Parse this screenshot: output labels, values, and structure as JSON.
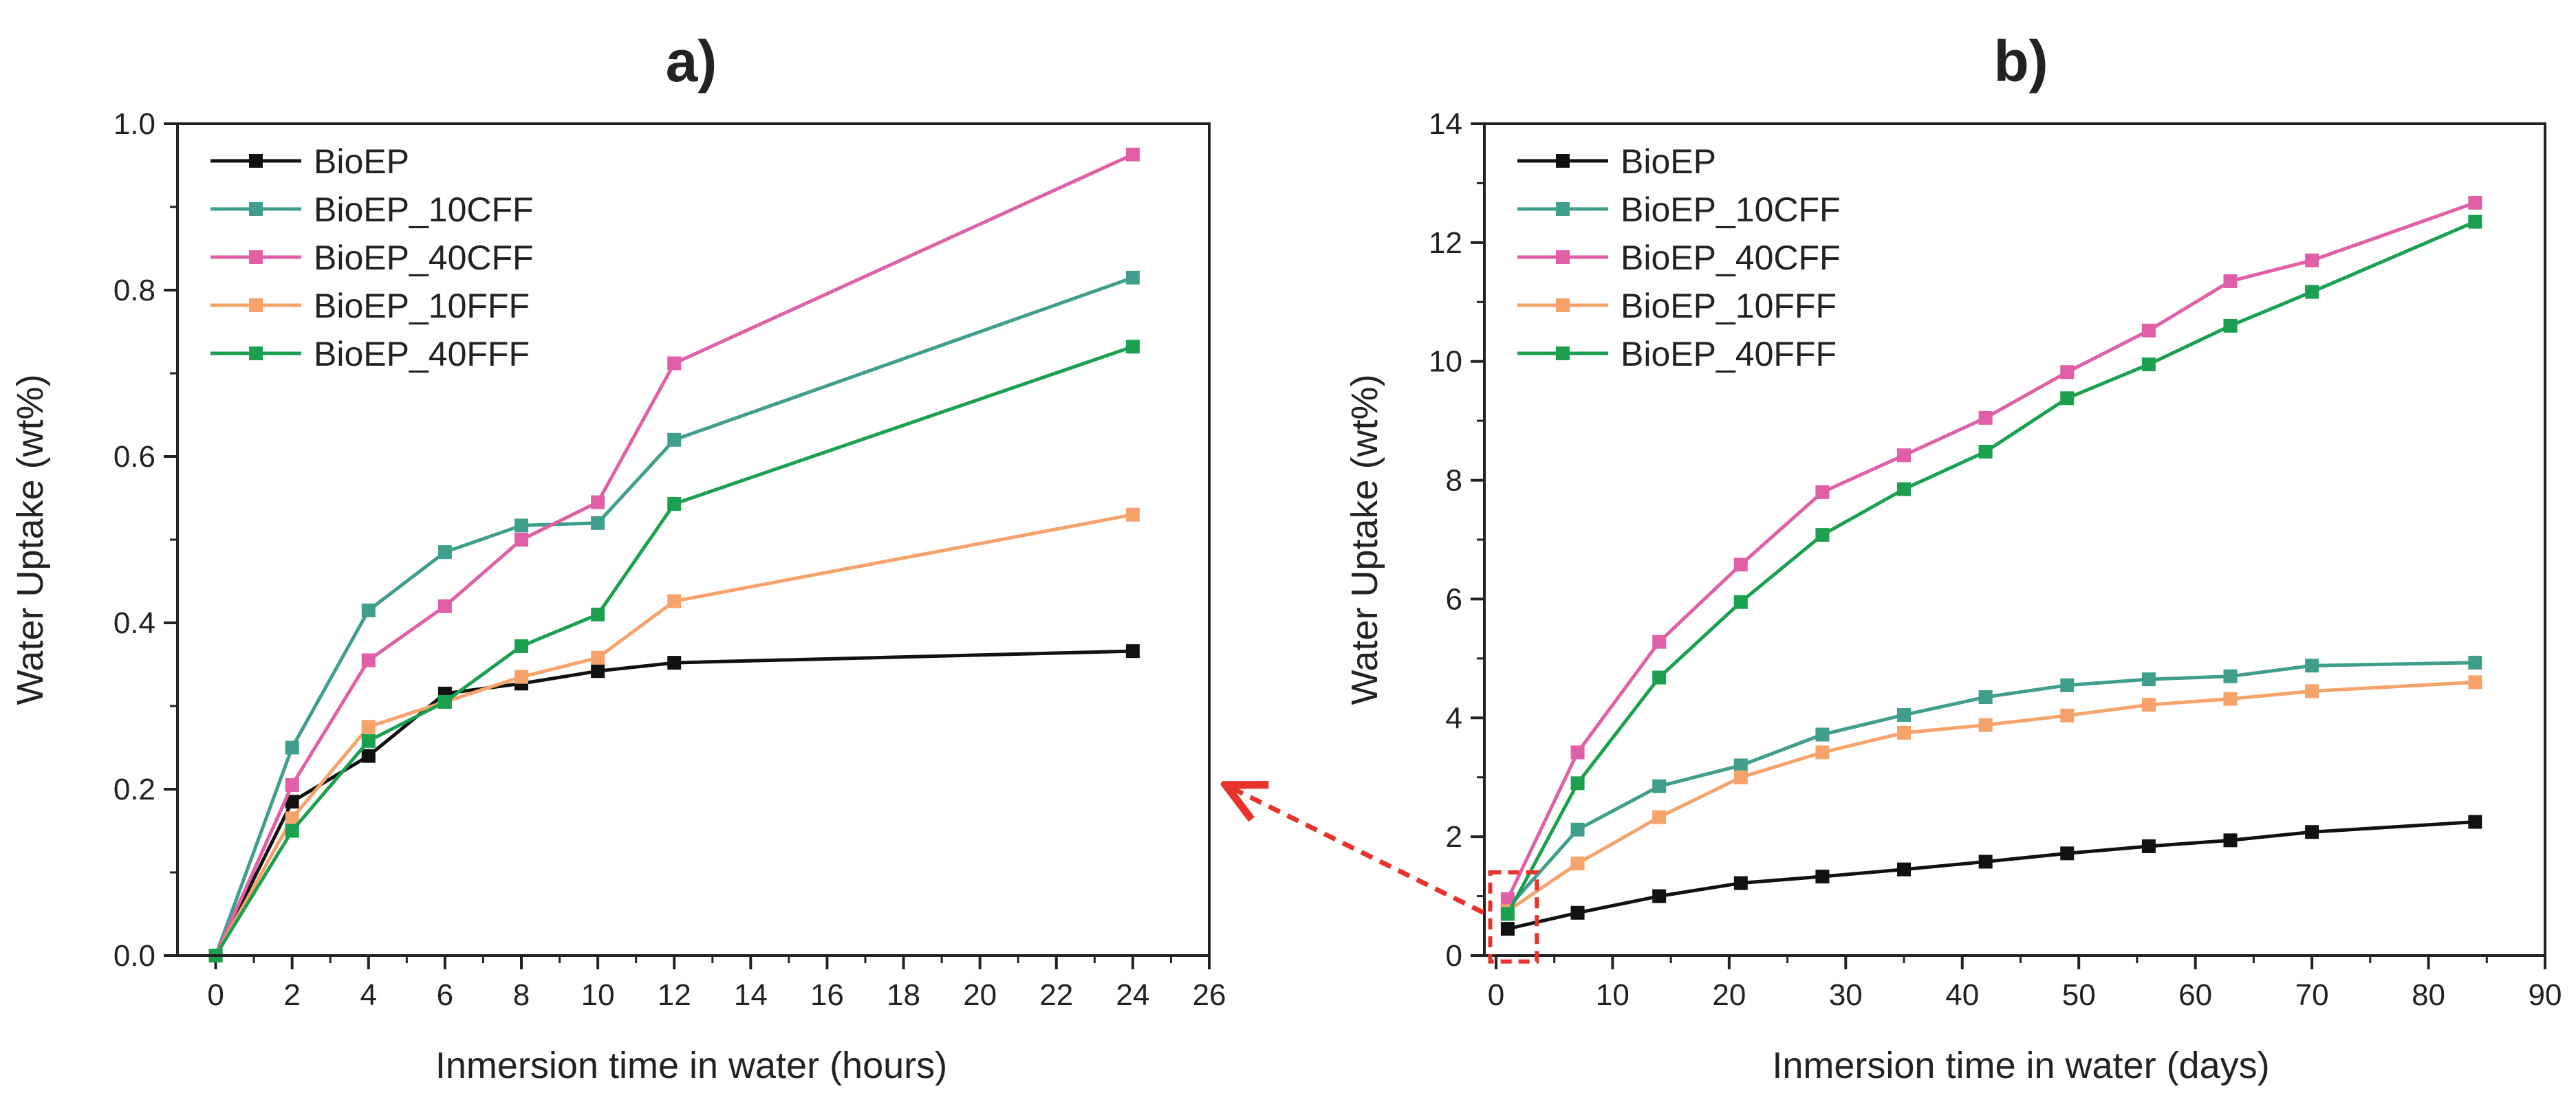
{
  "figure": {
    "arrow_color": "#e8332b"
  },
  "chart_data": [
    {
      "panel": "a)",
      "type": "line",
      "xlabel": "Inmersion time in water (hours)",
      "ylabel": "Water Uptake (wt%)",
      "xlim": [
        -1,
        26
      ],
      "ylim": [
        0,
        1.0
      ],
      "xticks": [
        0,
        2,
        4,
        6,
        8,
        10,
        12,
        14,
        16,
        18,
        20,
        22,
        24,
        26
      ],
      "yticks": [
        0.0,
        0.2,
        0.4,
        0.6,
        0.8,
        1.0
      ],
      "x": [
        0,
        2,
        4,
        6,
        8,
        10,
        12,
        24
      ],
      "legend_position": "top-left",
      "series": [
        {
          "name": "BioEP",
          "color": "#111111",
          "values": [
            0,
            0.185,
            0.24,
            0.315,
            0.327,
            0.342,
            0.352,
            0.366
          ]
        },
        {
          "name": "BioEP_10CFF",
          "color": "#3f9e8c",
          "values": [
            0,
            0.25,
            0.415,
            0.485,
            0.517,
            0.52,
            0.62,
            0.815
          ]
        },
        {
          "name": "BioEP_40CFF",
          "color": "#e05fa6",
          "values": [
            0,
            0.205,
            0.355,
            0.42,
            0.5,
            0.545,
            0.712,
            0.963
          ]
        },
        {
          "name": "BioEP_10FFF",
          "color": "#f6a26b",
          "values": [
            0,
            0.165,
            0.275,
            0.305,
            0.335,
            0.358,
            0.426,
            0.53
          ]
        },
        {
          "name": "BioEP_40FFF",
          "color": "#1aa04f",
          "values": [
            0,
            0.15,
            0.258,
            0.305,
            0.372,
            0.41,
            0.543,
            0.732
          ]
        }
      ]
    },
    {
      "panel": "b)",
      "type": "line",
      "xlabel": "Inmersion time in water (days)",
      "ylabel": "Water Uptake (wt%)",
      "xlim": [
        -1,
        90
      ],
      "ylim": [
        0,
        14
      ],
      "xticks": [
        0,
        10,
        20,
        30,
        40,
        50,
        60,
        70,
        80,
        90
      ],
      "yticks": [
        0,
        2,
        4,
        6,
        8,
        10,
        12,
        14
      ],
      "x": [
        1,
        7,
        14,
        21,
        28,
        35,
        42,
        49,
        56,
        63,
        70,
        84
      ],
      "legend_position": "top-left",
      "zoom_box": {
        "x": [
          -0.5,
          3.5
        ],
        "y": [
          -0.1,
          1.4
        ]
      },
      "series": [
        {
          "name": "BioEP",
          "color": "#111111",
          "values": [
            0.45,
            0.72,
            1.0,
            1.22,
            1.33,
            1.45,
            1.58,
            1.72,
            1.84,
            1.94,
            2.08,
            2.25
          ]
        },
        {
          "name": "BioEP_10CFF",
          "color": "#3f9e8c",
          "values": [
            0.8,
            2.12,
            2.85,
            3.2,
            3.72,
            4.05,
            4.35,
            4.55,
            4.65,
            4.7,
            4.88,
            4.93
          ]
        },
        {
          "name": "BioEP_40CFF",
          "color": "#e05fa6",
          "values": [
            0.95,
            3.42,
            5.28,
            6.58,
            7.8,
            8.42,
            9.05,
            9.82,
            10.52,
            11.35,
            11.7,
            12.67
          ]
        },
        {
          "name": "BioEP_10FFF",
          "color": "#f6a26b",
          "values": [
            0.75,
            1.55,
            2.33,
            3.0,
            3.42,
            3.75,
            3.88,
            4.04,
            4.22,
            4.32,
            4.45,
            4.6
          ]
        },
        {
          "name": "BioEP_40FFF",
          "color": "#1aa04f",
          "values": [
            0.7,
            2.9,
            4.68,
            5.95,
            7.08,
            7.85,
            8.48,
            9.38,
            9.95,
            10.6,
            11.17,
            12.35
          ]
        }
      ]
    }
  ]
}
